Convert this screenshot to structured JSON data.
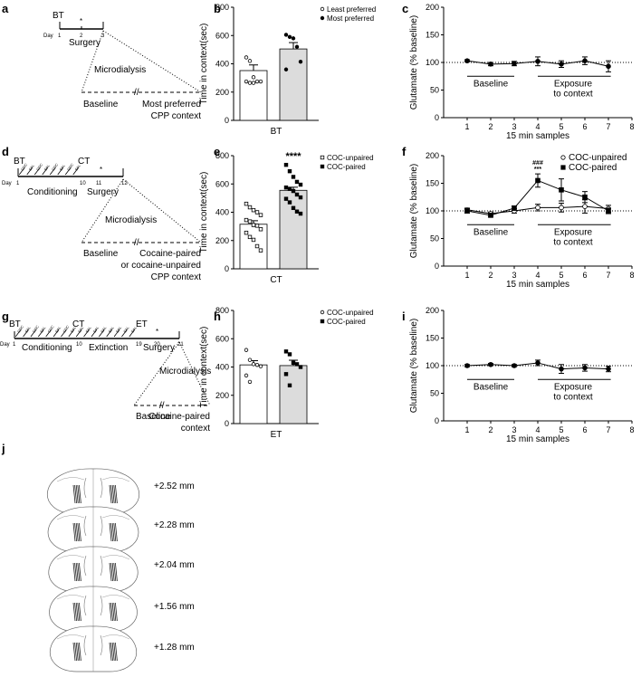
{
  "panel_letters": [
    "a",
    "b",
    "c",
    "d",
    "e",
    "f",
    "g",
    "h",
    "i",
    "j"
  ],
  "timelines": [
    {
      "id": "a",
      "test_label": "BT",
      "day_prefix": "Day",
      "day_ticks": [
        "1",
        "2",
        "3"
      ],
      "asterisk": "*",
      "stage_labels": [
        "Surgery"
      ],
      "microdialysis": "Microdialysis",
      "baseline": "Baseline",
      "context_lines": [
        "Most preferred",
        "CPP context"
      ]
    },
    {
      "id": "d",
      "test_label": "CT",
      "day_prefix": "Day",
      "day_ticks": [
        "1",
        "10",
        "11",
        "12"
      ],
      "asterisk": "*",
      "stage_labels": [
        "Conditioning",
        "Surgery"
      ],
      "syringe_marks": [
        "COC",
        "SAL",
        "COC",
        "SAL",
        "COC",
        "SAL",
        "COC",
        "SAL"
      ],
      "microdialysis": "Microdialysis",
      "baseline": "Baseline",
      "context_lines": [
        "Cocaine-paired",
        "or cocaine-unpaired",
        "CPP context"
      ]
    },
    {
      "id": "g",
      "test_label": "CT",
      "test_label_2": "ET",
      "first_label": "BT",
      "day_prefix": "Day",
      "day_ticks": [
        "1",
        "10",
        "19",
        "20",
        "21"
      ],
      "asterisk": "*",
      "stage_labels": [
        "Conditioning",
        "Extinction",
        "Surgery"
      ],
      "syringe_marks": [
        "COC",
        "SAL",
        "COC",
        "SAL",
        "COC",
        "SAL",
        "COC",
        "SAL",
        "SAL",
        "SAL",
        "SAL",
        "SAL",
        "SAL",
        "SAL",
        "SAL",
        "SAL"
      ],
      "microdialysis": "Microdialysis",
      "baseline": "Baseline",
      "context_lines": [
        "Cocaine-paired",
        "context"
      ]
    }
  ],
  "chart_data": [
    {
      "id": "b",
      "type": "bar",
      "ylabel": "Time in context(sec)",
      "xlabel": "BT",
      "ylim": [
        0,
        800
      ],
      "yticks": [
        "0",
        "200",
        "400",
        "600",
        "800"
      ],
      "legend": [
        "Least preferred",
        "Most preferred"
      ],
      "bar_colors": [
        "#ffffff",
        "#dcdcdc"
      ],
      "series": [
        {
          "name": "Least preferred",
          "mean": 352,
          "sem": 40,
          "points": [
            445,
            420,
            305,
            275,
            275,
            275,
            265,
            265
          ],
          "marker": "open-circle"
        },
        {
          "name": "Most preferred",
          "mean": 505,
          "sem": 45,
          "points": [
            605,
            590,
            580,
            520,
            415,
            360
          ],
          "marker": "filled-circle"
        }
      ],
      "significance": ""
    },
    {
      "id": "e",
      "type": "bar",
      "ylabel": "Time in context(sec)",
      "xlabel": "CT",
      "ylim": [
        0,
        800
      ],
      "yticks": [
        "0",
        "200",
        "400",
        "600",
        "800"
      ],
      "legend": [
        "COC-unpaired",
        "COC-paired"
      ],
      "bar_colors": [
        "#ffffff",
        "#dcdcdc"
      ],
      "series": [
        {
          "name": "COC-unpaired",
          "mean": 315,
          "sem": 25,
          "points": [
            460,
            435,
            415,
            400,
            380,
            345,
            335,
            310,
            305,
            280,
            255,
            225,
            205,
            160,
            130
          ],
          "marker": "open-square"
        },
        {
          "name": "COC-paired",
          "mean": 555,
          "sem": 22,
          "points": [
            735,
            690,
            650,
            615,
            595,
            575,
            565,
            550,
            525,
            505,
            495,
            470,
            430,
            405,
            390
          ],
          "marker": "filled-square"
        }
      ],
      "significance": "****"
    },
    {
      "id": "h",
      "type": "bar",
      "ylabel": "Time in context(sec)",
      "xlabel": "ET",
      "ylim": [
        0,
        800
      ],
      "yticks": [
        "0",
        "200",
        "400",
        "600",
        "800"
      ],
      "legend": [
        "COC-unpaired",
        "COC-paired"
      ],
      "bar_colors": [
        "#ffffff",
        "#dcdcdc"
      ],
      "series": [
        {
          "name": "COC-unpaired",
          "mean": 415,
          "sem": 30,
          "points": [
            520,
            450,
            420,
            415,
            405,
            340,
            295
          ],
          "marker": "open-circle"
        },
        {
          "name": "COC-paired",
          "mean": 410,
          "sem": 38,
          "points": [
            510,
            490,
            430,
            420,
            400,
            350,
            270
          ],
          "marker": "filled-square"
        }
      ],
      "significance": ""
    },
    {
      "id": "c",
      "type": "line",
      "ylabel": "Glutamate (% baseline)",
      "xlabel": "15 min samples",
      "x": [
        1,
        2,
        3,
        4,
        5,
        6,
        7
      ],
      "xlim": [
        0,
        8
      ],
      "xticks": [
        "1",
        "2",
        "3",
        "4",
        "5",
        "6",
        "7",
        "8"
      ],
      "ylim": [
        0,
        200
      ],
      "yticks": [
        "0",
        "50",
        "100",
        "150",
        "200"
      ],
      "reference_line": 100,
      "period_labels": {
        "baseline": "Baseline",
        "exposure": [
          "Exposure",
          "to context"
        ]
      },
      "series": [
        {
          "name": "",
          "marker": "filled-circle",
          "values": [
            103,
            97,
            98,
            102,
            97,
            103,
            93
          ],
          "errors": [
            2,
            3,
            4,
            8,
            6,
            7,
            10
          ]
        }
      ],
      "annotations": []
    },
    {
      "id": "f",
      "type": "line",
      "ylabel": "Glutamate (% baseline)",
      "xlabel": "15 min samples",
      "x": [
        1,
        2,
        3,
        4,
        5,
        6,
        7
      ],
      "xlim": [
        0,
        8
      ],
      "xticks": [
        "1",
        "2",
        "3",
        "4",
        "5",
        "6",
        "7",
        "8"
      ],
      "ylim": [
        0,
        200
      ],
      "yticks": [
        "0",
        "50",
        "100",
        "150",
        "200"
      ],
      "reference_line": 100,
      "legend": [
        "COC-unpaired",
        "COC-paired"
      ],
      "period_labels": {
        "baseline": "Baseline",
        "exposure": [
          "Exposure",
          "to context"
        ]
      },
      "series": [
        {
          "name": "COC-unpaired",
          "marker": "open-circle",
          "values": [
            102,
            95,
            100,
            106,
            106,
            108,
            104
          ],
          "errors": [
            3,
            3,
            4,
            6,
            8,
            12,
            6
          ]
        },
        {
          "name": "COC-paired",
          "marker": "filled-square",
          "values": [
            100,
            92,
            105,
            155,
            138,
            125,
            100
          ],
          "errors": [
            4,
            3,
            4,
            12,
            20,
            10,
            5
          ]
        }
      ],
      "annotations": [
        {
          "x": 4,
          "labels": [
            "###",
            "***"
          ]
        }
      ]
    },
    {
      "id": "i",
      "type": "line",
      "ylabel": "Glutamate (% baseline)",
      "xlabel": "15 min samples",
      "x": [
        1,
        2,
        3,
        4,
        5,
        6,
        7
      ],
      "xlim": [
        0,
        8
      ],
      "xticks": [
        "1",
        "2",
        "3",
        "4",
        "5",
        "6",
        "7",
        "8"
      ],
      "ylim": [
        0,
        200
      ],
      "yticks": [
        "0",
        "50",
        "100",
        "150",
        "200"
      ],
      "reference_line": 100,
      "period_labels": {
        "baseline": "Baseline",
        "exposure": [
          "Exposure",
          "to context"
        ]
      },
      "series": [
        {
          "name": "",
          "marker": "filled-circle",
          "values": [
            100,
            102,
            100,
            105,
            94,
            96,
            94
          ],
          "errors": [
            2,
            2,
            2,
            5,
            8,
            6,
            5
          ]
        }
      ],
      "annotations": []
    }
  ],
  "sections": {
    "labels": [
      "+2.52 mm",
      "+2.28 mm",
      "+2.04 mm",
      "+1.56 mm",
      "+1.28 mm"
    ]
  }
}
